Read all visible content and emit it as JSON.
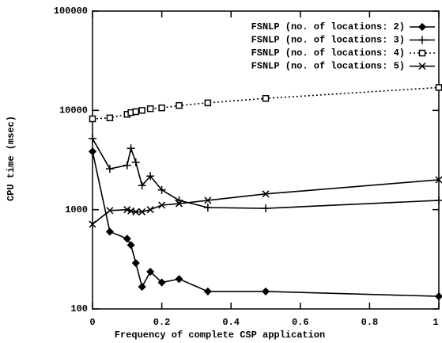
{
  "chart_data": {
    "type": "line",
    "xlabel": "Frequency of complete CSP application",
    "ylabel": "CPU time (msec)",
    "x": [
      0,
      0.05,
      0.1,
      0.111,
      0.125,
      0.143,
      0.167,
      0.2,
      0.25,
      0.333,
      0.5,
      1
    ],
    "series": [
      {
        "name": "FSNLP (no. of locations: 2)",
        "color": "#000000",
        "marker": "diamond",
        "linestyle": "solid",
        "values": [
          3860,
          600,
          510,
          440,
          290,
          167,
          237,
          185,
          200,
          150,
          150,
          134
        ]
      },
      {
        "name": "FSNLP (no. of locations: 3)",
        "color": "#000000",
        "marker": "plus",
        "linestyle": "solid",
        "values": [
          5200,
          2580,
          2800,
          4150,
          3000,
          1750,
          2180,
          1580,
          1240,
          1050,
          1030,
          1240
        ]
      },
      {
        "name": "FSNLP (no. of locations: 4)",
        "color": "#000000",
        "marker": "square",
        "linestyle": "dotted",
        "values": [
          8220,
          8400,
          9130,
          9500,
          9700,
          10000,
          10400,
          10600,
          11200,
          11900,
          13200,
          17000
        ]
      },
      {
        "name": "FSNLP (no. of locations: 5)",
        "color": "#000000",
        "marker": "x",
        "linestyle": "solid",
        "values": [
          713,
          980,
          1000,
          970,
          950,
          950,
          1000,
          1110,
          1150,
          1240,
          1440,
          2000
        ]
      }
    ],
    "xlim": [
      0,
      1
    ],
    "xticks": [
      0,
      0.2,
      0.4,
      0.6,
      0.8,
      1
    ],
    "ylim": [
      100,
      100000
    ],
    "yticks": [
      100,
      1000,
      10000,
      100000
    ],
    "ylog": true,
    "grid": false,
    "legend": "upper right"
  }
}
